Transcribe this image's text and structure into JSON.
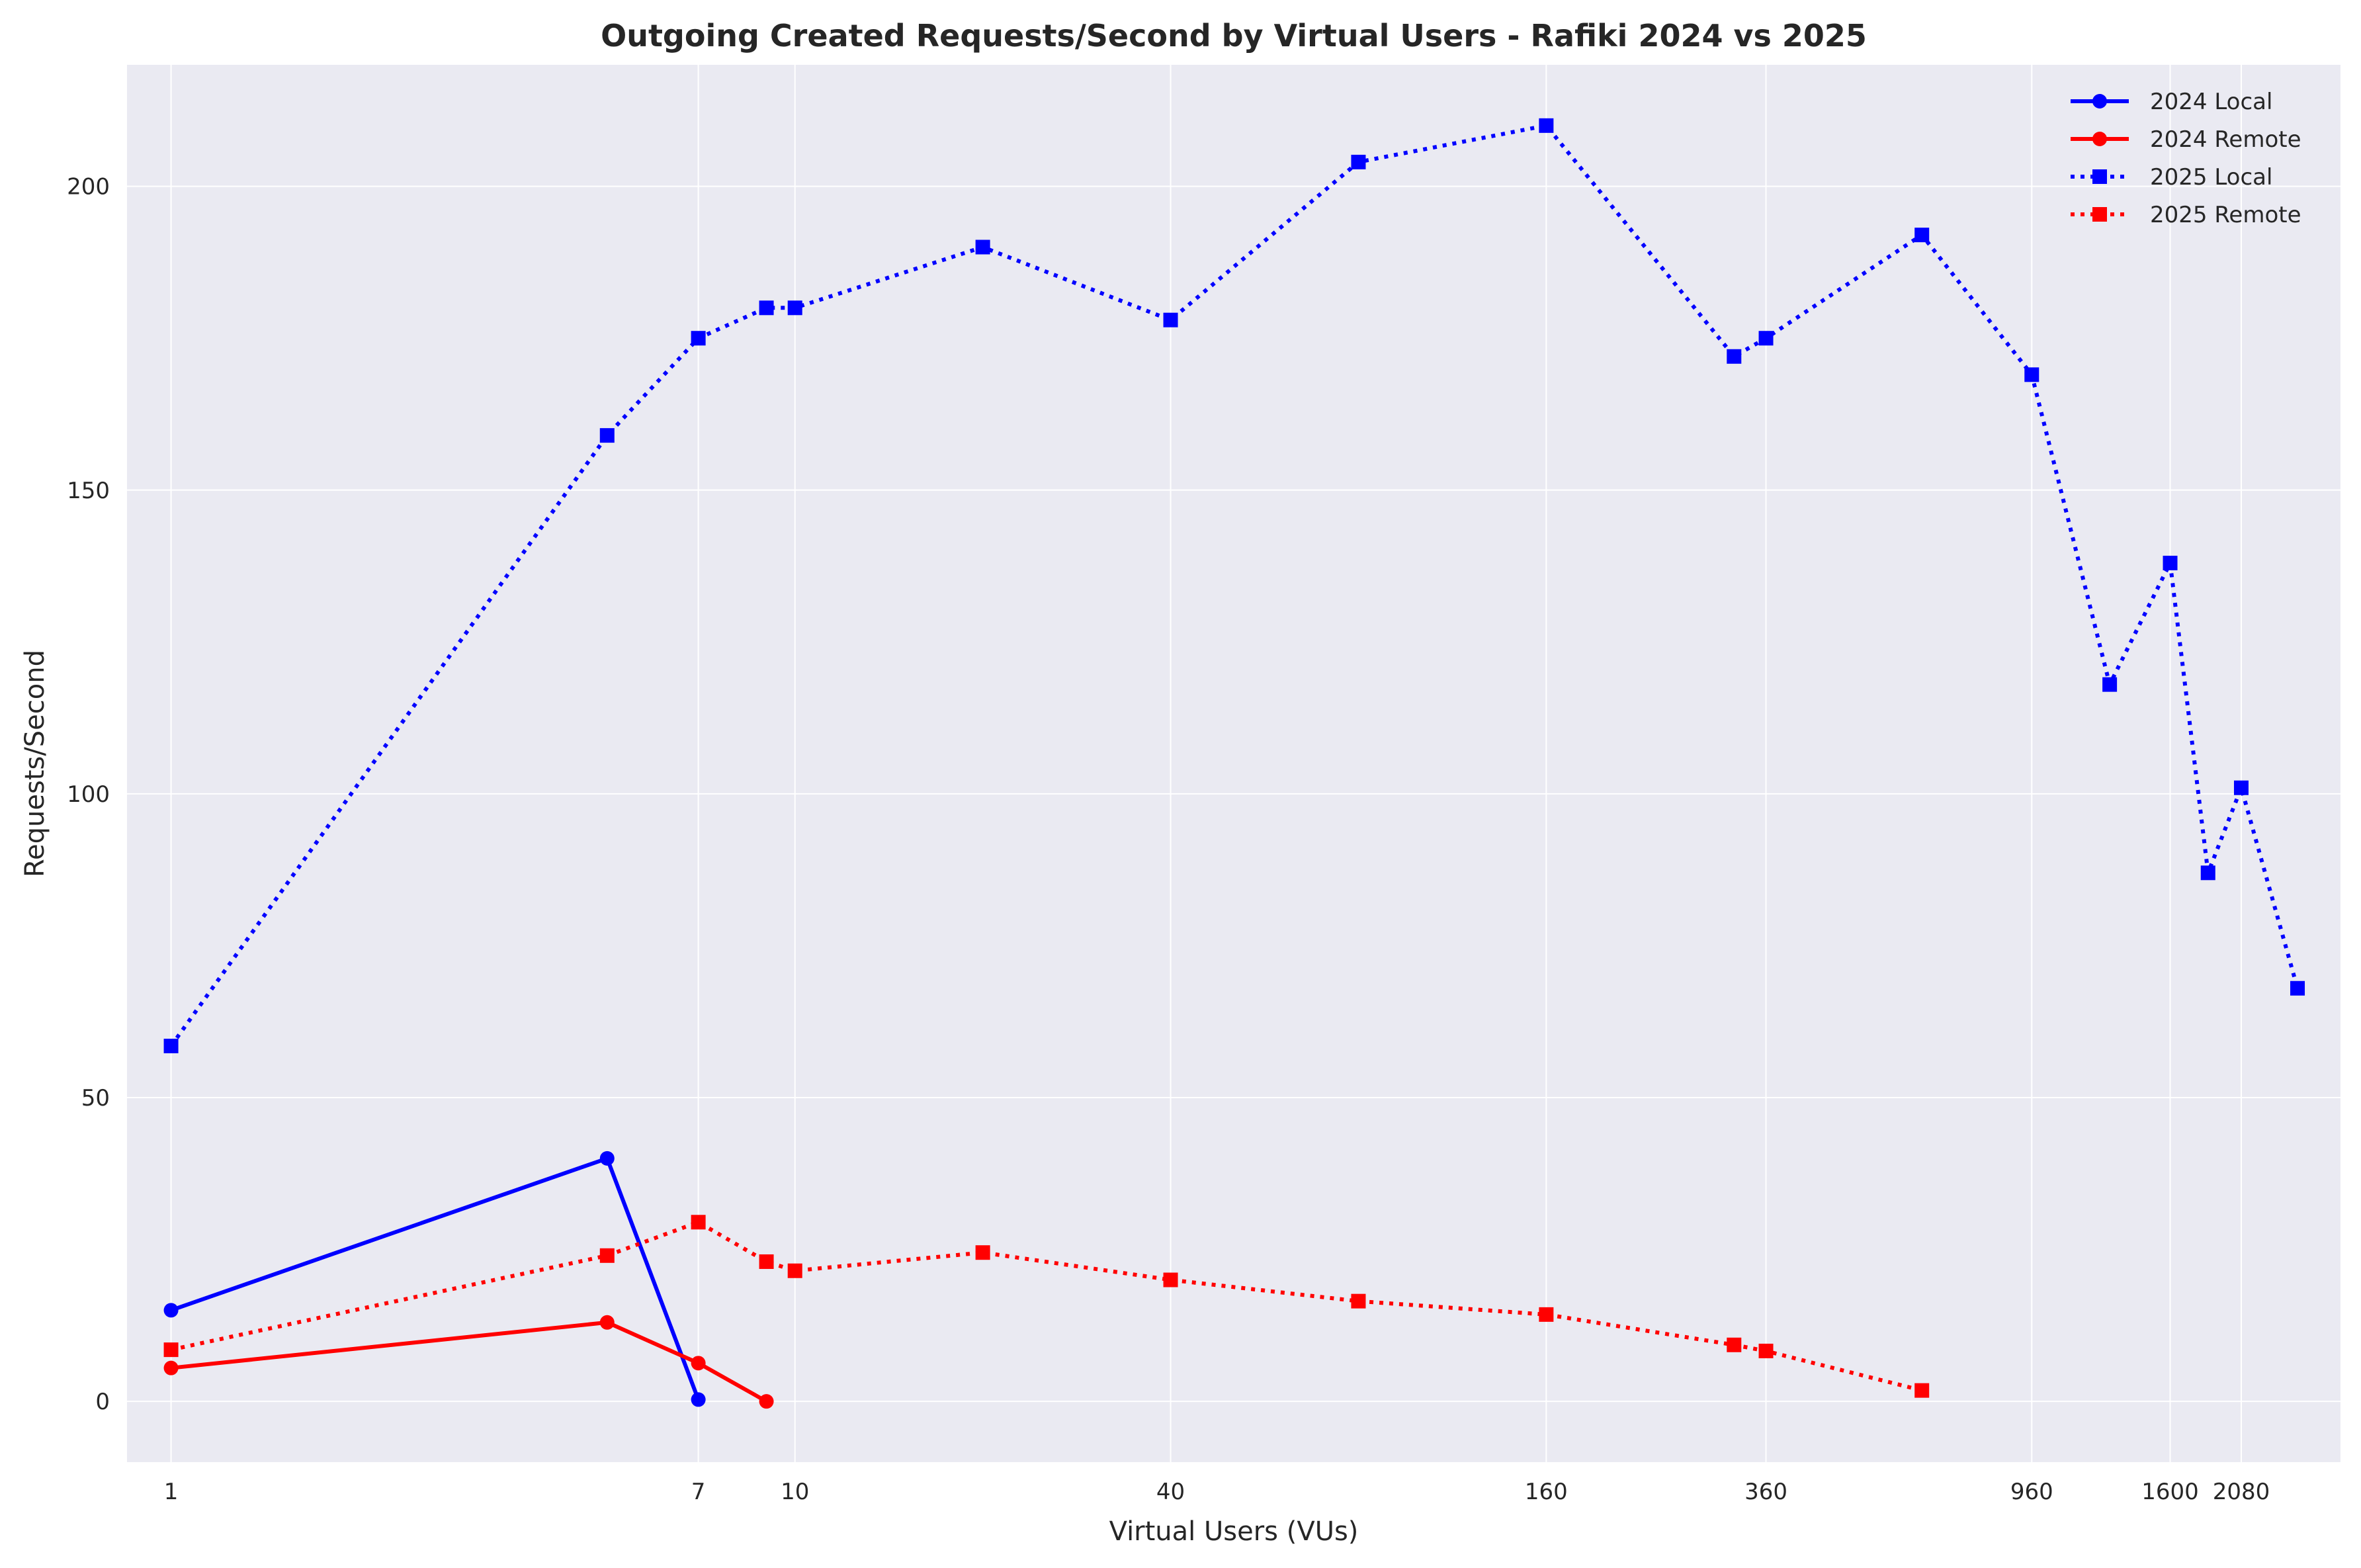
{
  "chart_data": {
    "type": "line",
    "title": "Outgoing Created Requests/Second by Virtual Users - Rafiki 2024 vs 2025",
    "xlabel": "Virtual Users (VUs)",
    "ylabel": "Requests/Second",
    "x_scale": "log",
    "xlim": [
      0.85,
      3000
    ],
    "ylim": [
      -10,
      220
    ],
    "x_ticks": [
      1,
      7,
      10,
      40,
      160,
      360,
      960,
      1600,
      2080
    ],
    "y_ticks": [
      0,
      50,
      100,
      150,
      200
    ],
    "grid": true,
    "legend_position": "top-right",
    "colors": {
      "blue": "#0000ff",
      "red": "#ff0000",
      "plot_bg": "#eaeaf2",
      "grid": "#ffffff"
    },
    "series": [
      {
        "name": "2024 Local",
        "color": "#0000ff",
        "line_style": "solid",
        "marker": "circle",
        "x": [
          1,
          5,
          7
        ],
        "y": [
          15,
          40,
          0.3
        ]
      },
      {
        "name": "2024 Remote",
        "color": "#ff0000",
        "line_style": "solid",
        "marker": "circle",
        "x": [
          1,
          5,
          7,
          9
        ],
        "y": [
          5.5,
          13,
          6.3,
          0
        ]
      },
      {
        "name": "2025 Local",
        "color": "#0000ff",
        "line_style": "dotted",
        "marker": "square",
        "x": [
          1,
          5,
          7,
          9,
          10,
          20,
          40,
          80,
          160,
          320,
          360,
          640,
          960,
          1280,
          1600,
          1840,
          2080,
          2560
        ],
        "y": [
          58.5,
          159,
          175,
          180,
          180,
          190,
          178,
          204,
          210,
          172,
          175,
          192,
          169,
          118,
          138,
          87,
          101,
          68
        ]
      },
      {
        "name": "2025 Remote",
        "color": "#ff0000",
        "line_style": "dotted",
        "marker": "square",
        "x": [
          1,
          5,
          7,
          9,
          10,
          20,
          40,
          80,
          160,
          320,
          360,
          640
        ],
        "y": [
          8.5,
          24,
          29.5,
          23,
          21.5,
          24.5,
          20,
          16.5,
          14.3,
          9.3,
          8.3,
          1.8
        ]
      }
    ]
  }
}
